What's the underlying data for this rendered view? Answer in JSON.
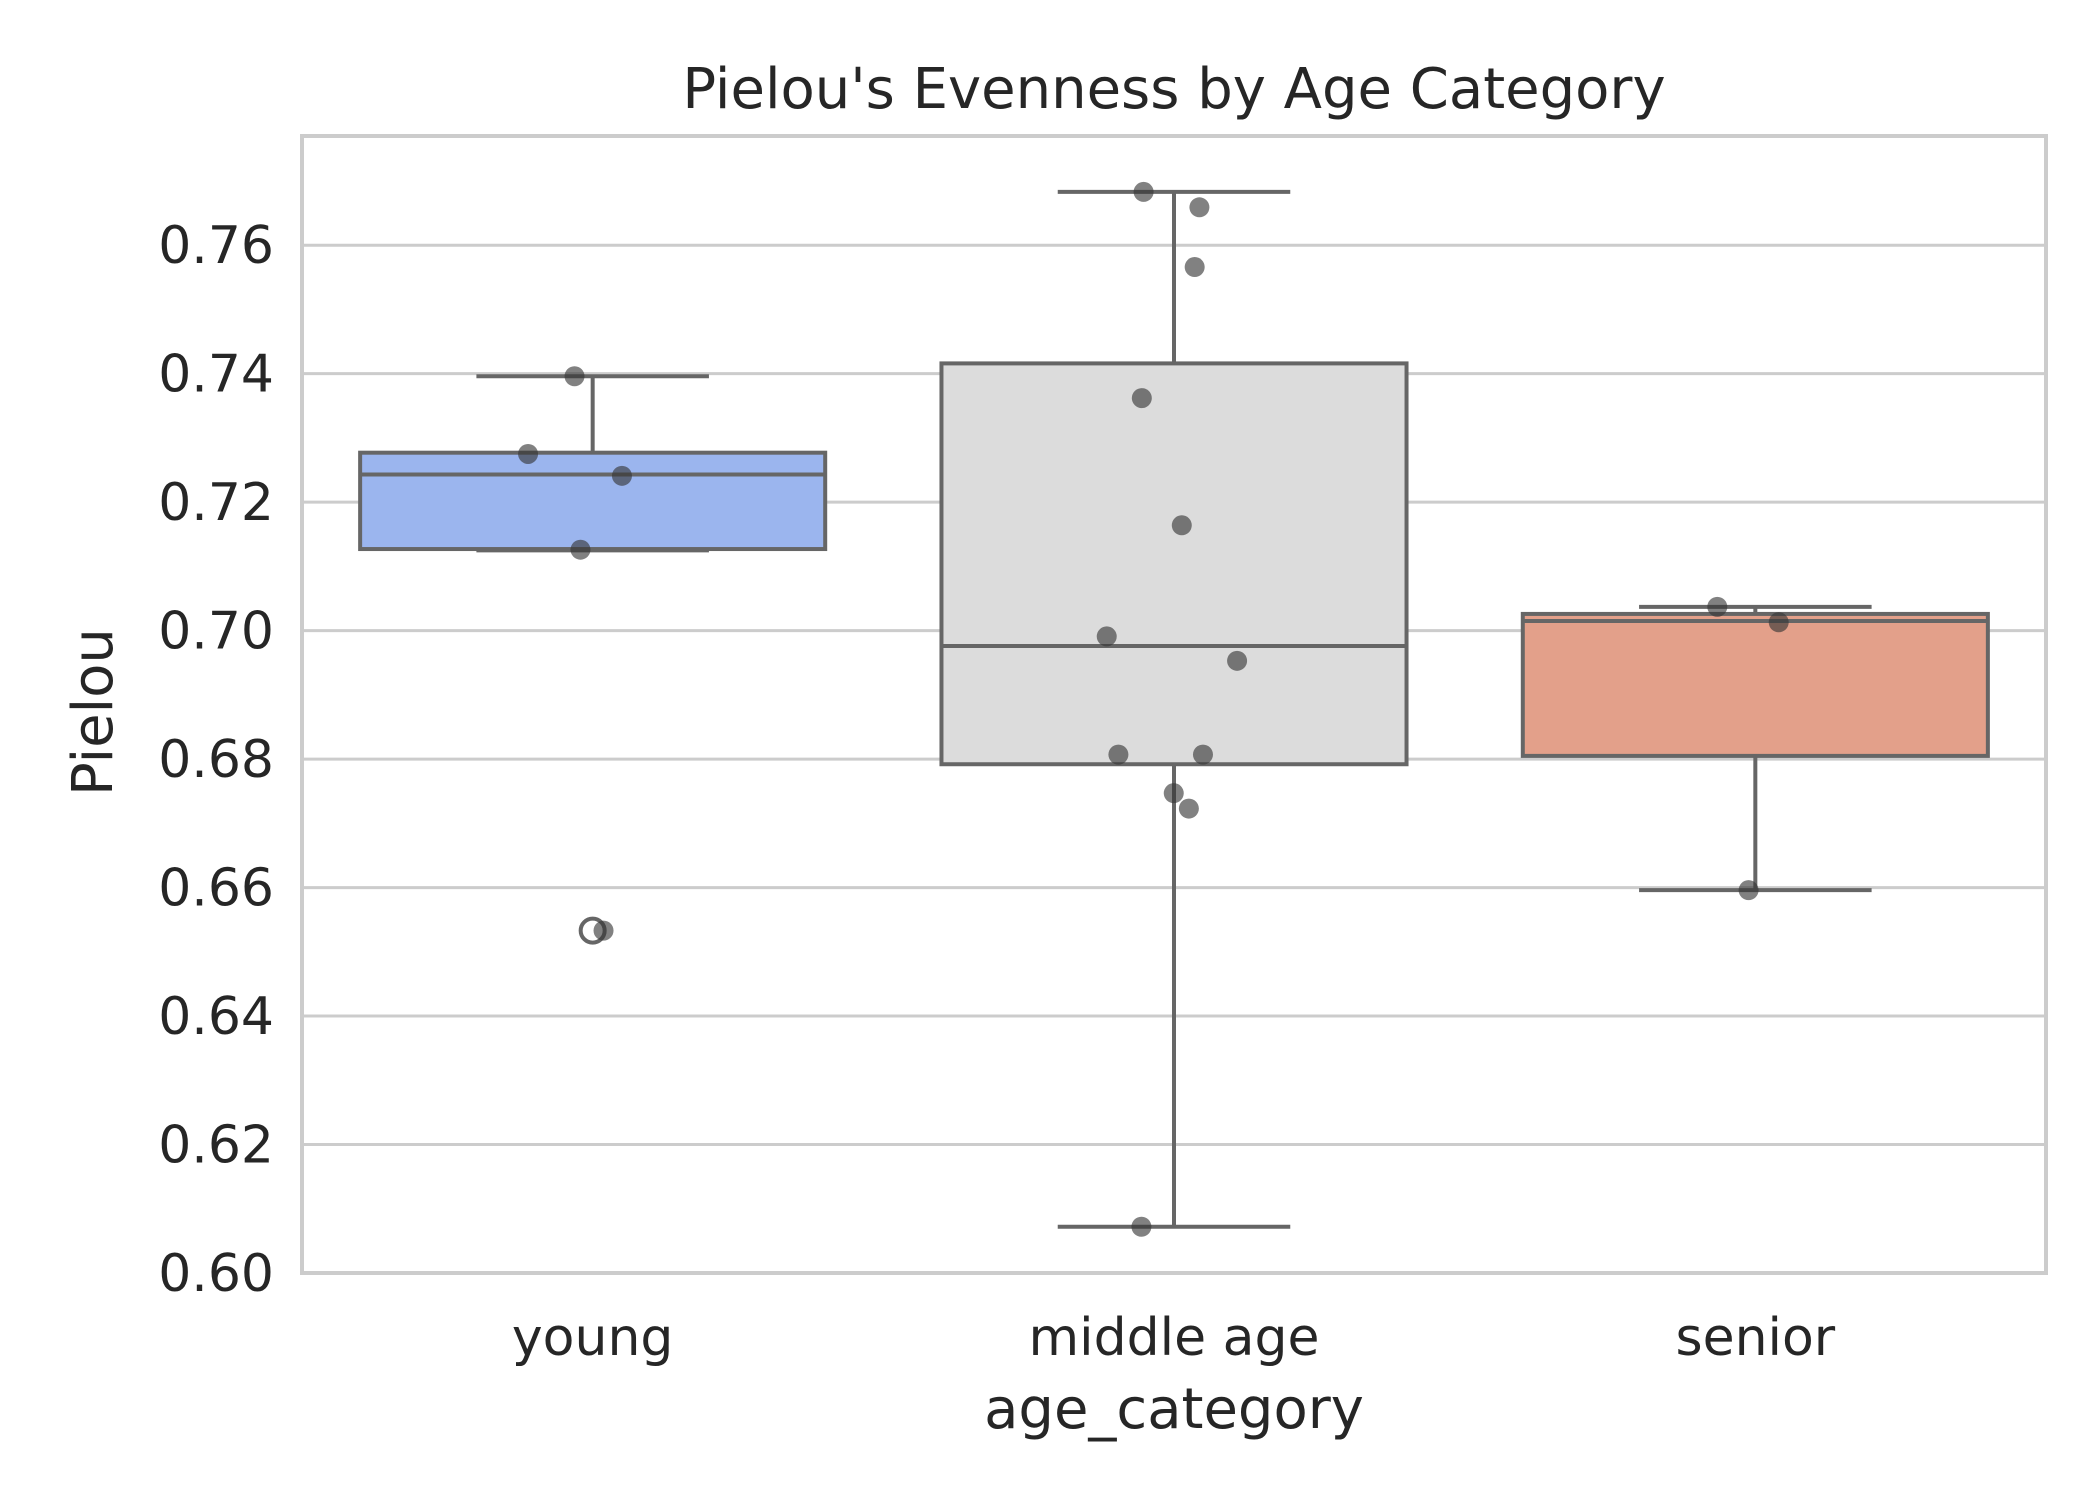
{
  "chart_data": {
    "type": "box",
    "title": "Pielou's Evenness by Age Category",
    "xlabel": "age_category",
    "ylabel": "Pielou",
    "ylim": [
      0.6,
      0.777
    ],
    "yticks": [
      "0.60",
      "0.62",
      "0.64",
      "0.66",
      "0.68",
      "0.70",
      "0.72",
      "0.74",
      "0.76"
    ],
    "grid": "horizontal",
    "categories": [
      "young",
      "middle age",
      "senior"
    ],
    "box_colors": [
      "#9bb5ee",
      "#dcdcdc",
      "#e3a08a"
    ],
    "boxes": [
      {
        "category": "young",
        "whisker_low": 0.7125,
        "q1": 0.7127,
        "median": 0.7243,
        "q3": 0.7277,
        "whisker_high": 0.7396,
        "outliers": [
          0.6533
        ]
      },
      {
        "category": "middle age",
        "whisker_low": 0.6072,
        "q1": 0.6792,
        "median": 0.6976,
        "q3": 0.7416,
        "whisker_high": 0.7683,
        "outliers": []
      },
      {
        "category": "senior",
        "whisker_low": 0.6596,
        "q1": 0.6805,
        "median": 0.7015,
        "q3": 0.7026,
        "whisker_high": 0.7037,
        "outliers": []
      }
    ],
    "points": [
      {
        "category": "young",
        "values": [
          0.7396,
          0.7275,
          0.7241,
          0.7126,
          0.6533
        ]
      },
      {
        "category": "middle age",
        "values": [
          0.7683,
          0.7659,
          0.7566,
          0.7362,
          0.7164,
          0.6991,
          0.6953,
          0.6807,
          0.6807,
          0.6747,
          0.6723,
          0.6072
        ]
      },
      {
        "category": "senior",
        "values": [
          0.7037,
          0.7013,
          0.6596
        ]
      }
    ]
  }
}
